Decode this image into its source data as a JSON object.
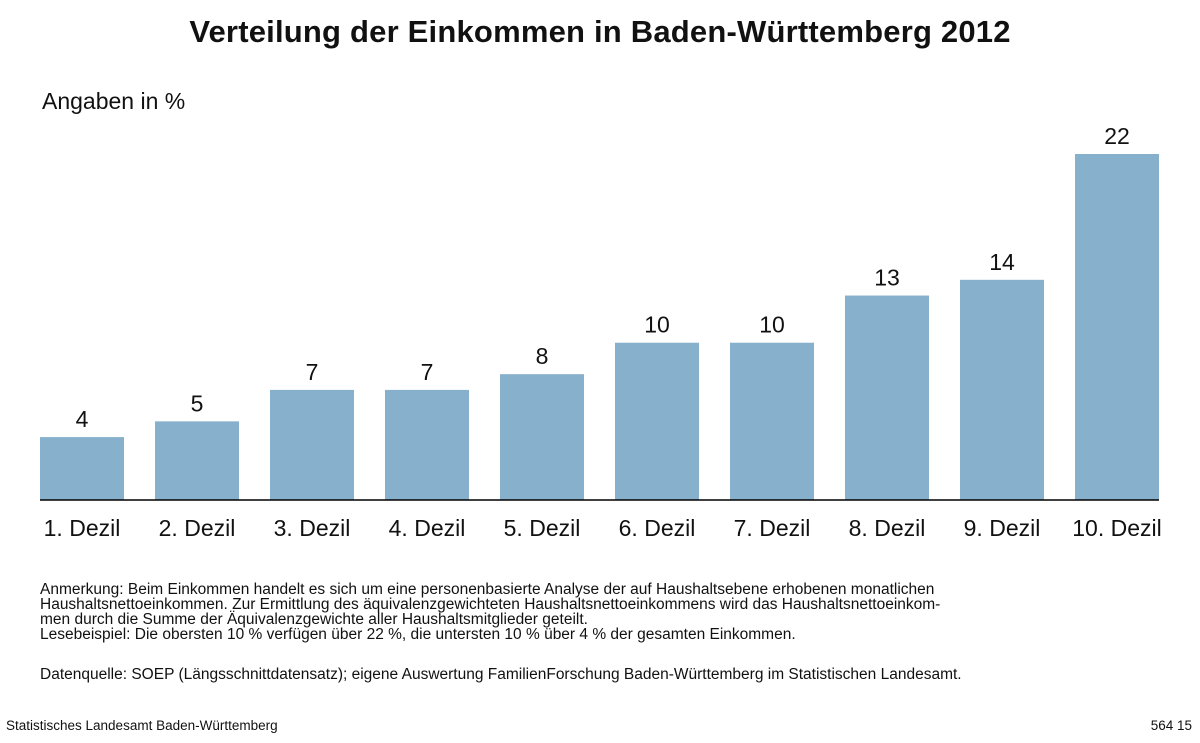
{
  "title": "Verteilung der Einkommen in Baden-Württemberg 2012",
  "unit_label": "Angaben in %",
  "chart_data": {
    "type": "bar",
    "title": "Verteilung der Einkommen in Baden-Württemberg 2012",
    "ylabel": "Angaben in %",
    "xlabel": "",
    "categories": [
      "1. Dezil",
      "2. Dezil",
      "3. Dezil",
      "4. Dezil",
      "5. Dezil",
      "6. Dezil",
      "7. Dezil",
      "8. Dezil",
      "9. Dezil",
      "10. Dezil"
    ],
    "values": [
      4,
      5,
      7,
      7,
      8,
      10,
      10,
      13,
      14,
      22
    ],
    "ylim": [
      0,
      22
    ],
    "grid": false,
    "data_labels": true,
    "bar_color": "#86b0cb"
  },
  "notes": [
    "Anmerkung: Beim Einkommen handelt es sich um eine personenbasierte Analyse der auf Haushaltsebene erhobenen monatlichen",
    "Haushaltsnettoeinkommen. Zur Ermittlung des äquivalenzgewichteten Haushaltsnettoeinkommens wird das Haushaltsnettoeinkom-",
    "men durch die Summe der Äquivalenzgewichte  aller Haushaltsmitglieder geteilt.",
    "Lesebeispiel: Die obersten 10 % verfügen über 22 %, die untersten 10 % über 4 % der gesamten Einkommen."
  ],
  "source": "Datenquelle: SOEP (Längsschnittdatensatz); eigene Auswertung FamilienForschung Baden-Württemberg im Statistischen Landesamt.",
  "footer": {
    "publisher": "Statistisches Landesamt Baden-Württemberg",
    "code": "564 15"
  }
}
